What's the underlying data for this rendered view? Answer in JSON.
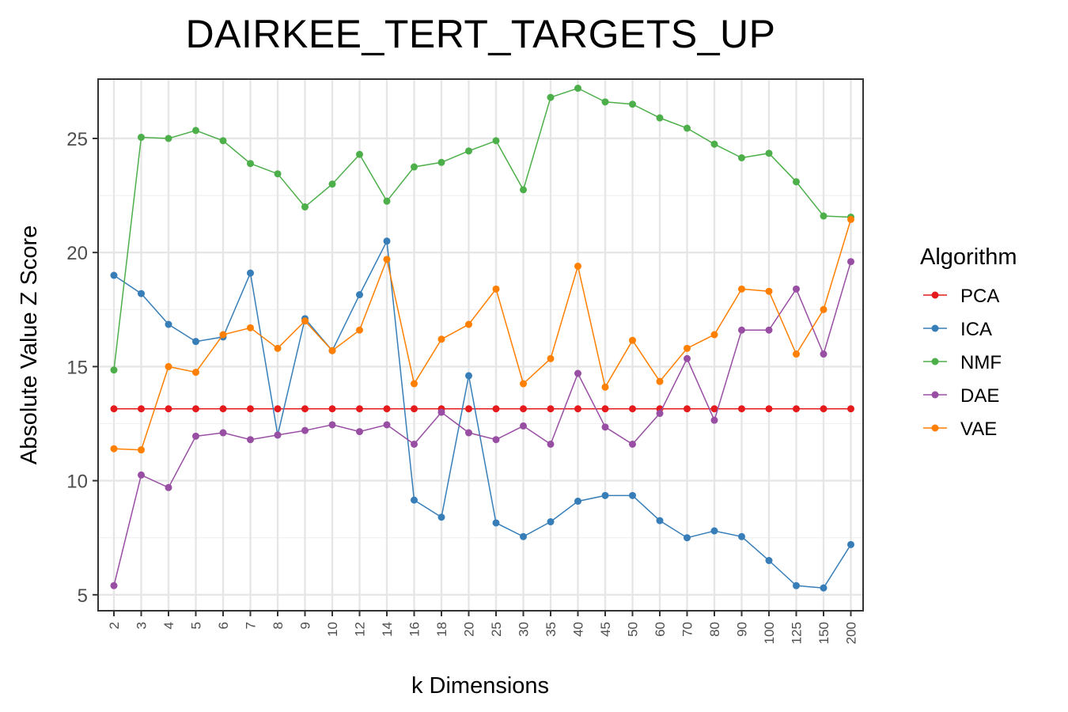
{
  "chart_data": {
    "type": "line",
    "title": "DAIRKEE_TERT_TARGETS_UP",
    "xlabel": "k Dimensions",
    "ylabel": "Absolute Value Z Score",
    "legend_title": "Algorithm",
    "legend_position": "right",
    "grid": true,
    "ylim": [
      4.3,
      27.6
    ],
    "y_ticks": [
      5,
      10,
      15,
      20,
      25
    ],
    "categories": [
      "2",
      "3",
      "4",
      "5",
      "6",
      "7",
      "8",
      "9",
      "10",
      "12",
      "14",
      "16",
      "18",
      "20",
      "25",
      "30",
      "35",
      "40",
      "45",
      "50",
      "60",
      "70",
      "80",
      "90",
      "100",
      "125",
      "150",
      "200"
    ],
    "series": [
      {
        "name": "PCA",
        "color": "#e41a1c",
        "values": [
          13.15,
          13.15,
          13.15,
          13.15,
          13.15,
          13.15,
          13.15,
          13.15,
          13.15,
          13.15,
          13.15,
          13.15,
          13.15,
          13.15,
          13.15,
          13.15,
          13.15,
          13.15,
          13.15,
          13.15,
          13.15,
          13.15,
          13.15,
          13.15,
          13.15,
          13.15,
          13.15,
          13.15
        ]
      },
      {
        "name": "ICA",
        "color": "#377eb8",
        "values": [
          19.0,
          18.2,
          16.85,
          16.1,
          16.3,
          19.1,
          12.0,
          17.1,
          15.7,
          18.15,
          20.5,
          9.15,
          8.4,
          14.6,
          8.15,
          7.55,
          8.2,
          9.1,
          9.35,
          9.35,
          8.25,
          7.5,
          7.8,
          7.55,
          6.5,
          5.4,
          5.3,
          7.2
        ]
      },
      {
        "name": "NMF",
        "color": "#4daf4a",
        "values": [
          14.85,
          25.05,
          25.0,
          25.35,
          24.9,
          23.9,
          23.45,
          22.0,
          23.0,
          24.3,
          22.25,
          23.75,
          23.95,
          24.45,
          24.9,
          22.75,
          26.8,
          27.2,
          26.6,
          26.5,
          25.9,
          25.45,
          24.75,
          24.15,
          24.35,
          23.1,
          21.6,
          21.55
        ]
      },
      {
        "name": "DAE",
        "color": "#984ea3",
        "values": [
          5.4,
          10.25,
          9.7,
          11.95,
          12.1,
          11.8,
          12.0,
          12.2,
          12.45,
          12.15,
          12.45,
          11.6,
          13.0,
          12.1,
          11.8,
          12.4,
          11.6,
          14.7,
          12.35,
          11.6,
          12.95,
          15.35,
          12.65,
          16.6,
          16.6,
          18.4,
          15.55,
          19.6
        ]
      },
      {
        "name": "VAE",
        "color": "#ff7f00",
        "values": [
          11.4,
          11.35,
          15.0,
          14.75,
          16.4,
          16.7,
          15.8,
          17.0,
          15.7,
          16.6,
          19.7,
          14.25,
          16.2,
          16.85,
          18.4,
          14.25,
          15.35,
          19.4,
          14.1,
          16.15,
          14.35,
          15.8,
          16.4,
          18.4,
          18.3,
          15.55,
          17.5,
          21.45
        ]
      }
    ]
  }
}
